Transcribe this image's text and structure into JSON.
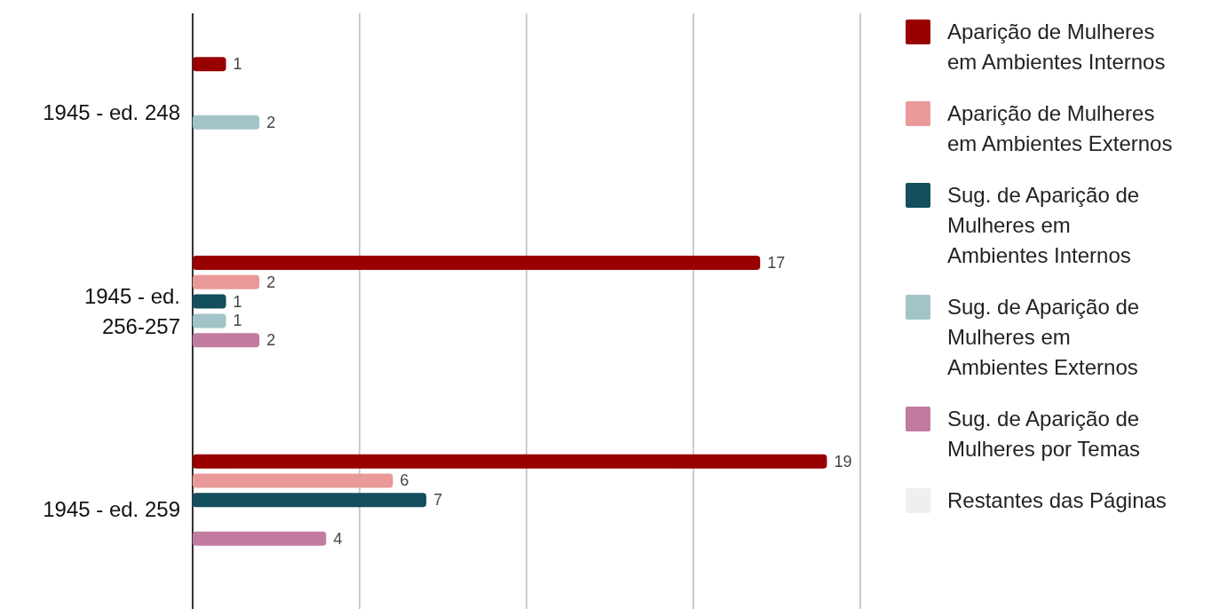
{
  "chart_data": {
    "type": "bar",
    "orientation": "horizontal",
    "categories": [
      "1945 - ed. 248",
      "1945 - ed. 256-257",
      "1945 - ed. 259"
    ],
    "series": [
      {
        "name": "Aparição de Mulheres em Ambientes Internos",
        "color": "#990000",
        "values": [
          1,
          17,
          19
        ]
      },
      {
        "name": "Aparição de Mulheres em Ambientes Externos",
        "color": "#ea9999",
        "values": [
          null,
          2,
          6
        ]
      },
      {
        "name": "Sug. de Aparição de Mulheres em Ambientes Internos",
        "color": "#134f5c",
        "values": [
          null,
          1,
          7
        ]
      },
      {
        "name": "Sug. de Aparição de Mulheres em Ambientes Externos",
        "color": "#a2c4c9",
        "values": [
          2,
          1,
          null
        ]
      },
      {
        "name": "Sug. de Aparição de Mulheres por Temas",
        "color": "#c27ba0",
        "values": [
          null,
          2,
          4
        ]
      },
      {
        "name": "Restantes das Páginas",
        "color": "#efefef",
        "values": [
          null,
          null,
          null
        ]
      }
    ],
    "xlim": [
      0,
      20
    ],
    "xticks": [
      {
        "value": 0,
        "label": null
      },
      {
        "value": 5,
        "label": null
      },
      {
        "value": 10,
        "label": null
      },
      {
        "value": 15,
        "label": null
      },
      {
        "value": 20,
        "label": null
      }
    ],
    "tick_labels": "y",
    "grid": "x",
    "legend": "right",
    "data_labels": true
  }
}
